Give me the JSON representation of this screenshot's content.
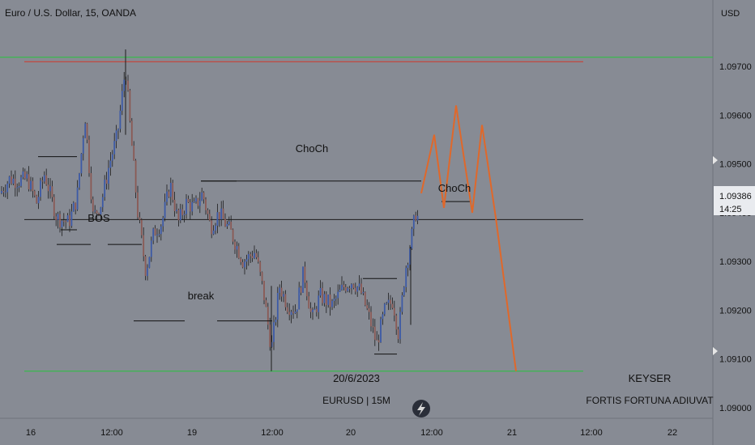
{
  "header": {
    "symbol_title": "Euro / U.S. Dollar, 15, OANDA",
    "currency": "USD"
  },
  "price_badge": {
    "price": "1.09386",
    "countdown": "14:25"
  },
  "watermark": {
    "date": "20/6/2023",
    "pair_tf": "EURUSD | 15M",
    "author": "KEYSER",
    "motto": "FORTIS FORTUNA ADIUVAT"
  },
  "annotations": {
    "choch_top": "ChoCh",
    "choch_right": "ChoCh",
    "bos": "BOS",
    "break": "break"
  },
  "icons": {
    "flash": "lightning-icon",
    "scroll": "chevron-right-icon"
  },
  "colors": {
    "background": "#878b94",
    "bull_candle": "#3c5aa6",
    "bear_candle": "#8a5a55",
    "resistance": "#d0372a",
    "range_line": "#26c43c",
    "projection": "#e0682a",
    "price_line": "#1a1a1a"
  },
  "chart_data": {
    "type": "candlestick",
    "title": "Euro / U.S. Dollar, 15, OANDA",
    "y_ticks": [
      "1.09700",
      "1.09600",
      "1.09500",
      "1.09400",
      "1.09300",
      "1.09200",
      "1.09100",
      "1.09000"
    ],
    "x_ticks": [
      "16",
      "12:00",
      "19",
      "12:00",
      "20",
      "12:00",
      "21",
      "12:00",
      "22"
    ],
    "ylim": [
      1.08965,
      1.09795
    ],
    "current_price": 1.09386,
    "levels": [
      {
        "name": "resistance",
        "price": 1.0971
      },
      {
        "name": "range_top",
        "price": 1.09719
      },
      {
        "name": "range_bottom",
        "price": 1.09075
      }
    ],
    "projected_path": [
      1.0944,
      1.0956,
      1.0941,
      1.0962,
      1.094,
      1.0958,
      1.0939,
      1.09075
    ]
  }
}
